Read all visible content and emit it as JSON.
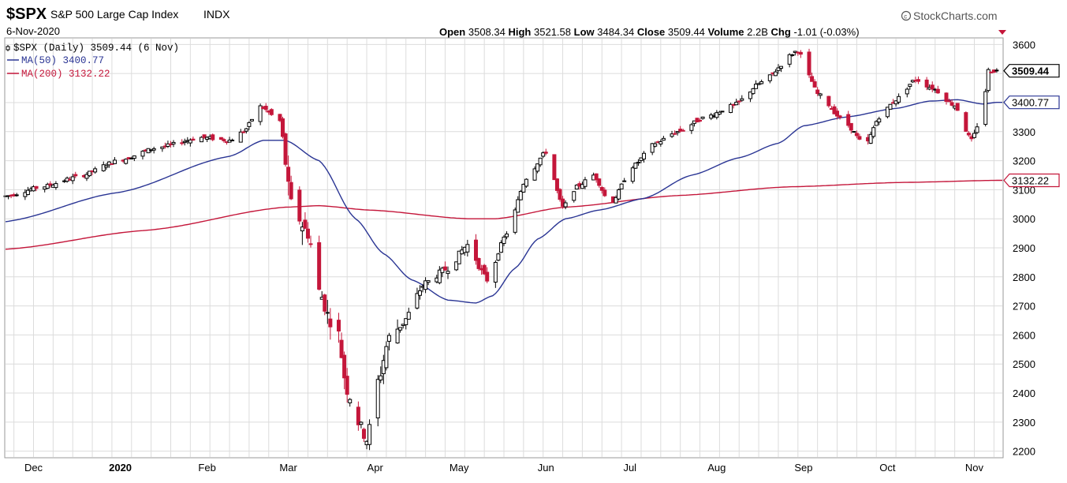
{
  "header": {
    "symbol": "$SPX",
    "name": "S&P 500 Large Cap Index",
    "exchange": "INDX",
    "date": "6-Nov-2020",
    "brand": "StockCharts.com",
    "brand_icon": "copyright-icon",
    "quote": {
      "open_label": "Open",
      "open": "3508.34",
      "high_label": "High",
      "high": "3521.58",
      "low_label": "Low",
      "low": "3484.34",
      "close_label": "Close",
      "close": "3509.44",
      "volume_label": "Volume",
      "volume": "2.2B",
      "chg_label": "Chg",
      "chg": "-1.01 (-0.03%)",
      "chg_icon": "triangle-down-icon"
    }
  },
  "legend": {
    "price": "$SPX (Daily) 3509.44 (6 Nov)",
    "ma50": "MA(50) 3400.77",
    "ma200": "MA(200) 3132.22"
  },
  "tags": {
    "price": "3509.44",
    "ma50": "3400.77",
    "ma200": "3132.22"
  },
  "colors": {
    "up": "#000000",
    "down": "#c4163a",
    "ma50": "#2a3594",
    "ma200": "#c4163a",
    "grid": "#dcdcdc",
    "frame": "#9a9a9a"
  },
  "chart_data": {
    "type": "candlestick",
    "y_axis": {
      "position": "right",
      "ylim": [
        2180,
        3620
      ],
      "ticks": [
        2200,
        2300,
        2400,
        2500,
        2600,
        2700,
        2800,
        2900,
        3000,
        3100,
        3200,
        3300,
        3400,
        3500,
        3600
      ]
    },
    "x_axis": {
      "labels": [
        {
          "label": "Dec",
          "bold": false,
          "day": 10
        },
        {
          "label": "2020",
          "bold": true,
          "day": 41
        },
        {
          "label": "Feb",
          "bold": false,
          "day": 72
        },
        {
          "label": "Mar",
          "bold": false,
          "day": 101
        },
        {
          "label": "Apr",
          "bold": false,
          "day": 132
        },
        {
          "label": "May",
          "bold": false,
          "day": 162
        },
        {
          "label": "Jun",
          "bold": false,
          "day": 193
        },
        {
          "label": "Jul",
          "bold": false,
          "day": 223
        },
        {
          "label": "Aug",
          "bold": false,
          "day": 254
        },
        {
          "label": "Sep",
          "bold": false,
          "day": 285
        },
        {
          "label": "Oct",
          "bold": false,
          "day": 315
        },
        {
          "label": "Nov",
          "bold": false,
          "day": 346
        }
      ],
      "day_range": [
        0,
        356
      ]
    },
    "grid": true,
    "legend_position": "top-left",
    "series": [
      {
        "name": "$SPX (Daily)",
        "kind": "price",
        "x_days": [
          0,
          13,
          26,
          40,
          55,
          70,
          80,
          85,
          91,
          98,
          102,
          108,
          112,
          116,
          118,
          122,
          126,
          129,
          133,
          137,
          141,
          150,
          158,
          165,
          172,
          179,
          186,
          193,
          199,
          204,
          210,
          216,
          224,
          232,
          240,
          250,
          260,
          270,
          283,
          287,
          290,
          300,
          307,
          312,
          318,
          325,
          331,
          339,
          345,
          349,
          351,
          354
        ],
        "close": [
          3078,
          3110,
          3145,
          3200,
          3247,
          3280,
          3270,
          3300,
          3386,
          3337,
          3050,
          2950,
          2750,
          2650,
          2650,
          2410,
          2300,
          2240,
          2440,
          2590,
          2630,
          2780,
          2830,
          2910,
          2790,
          2950,
          3140,
          3230,
          3040,
          3110,
          3150,
          3050,
          3180,
          3260,
          3300,
          3350,
          3390,
          3470,
          3580,
          3490,
          3430,
          3330,
          3250,
          3350,
          3410,
          3480,
          3450,
          3390,
          3270,
          3370,
          3510,
          3509.44
        ]
      },
      {
        "name": "MA(50)",
        "kind": "ma50",
        "x_days": [
          0,
          40,
          80,
          92,
          100,
          112,
          125,
          135,
          145,
          158,
          168,
          174,
          182,
          190,
          200,
          212,
          228,
          245,
          262,
          276,
          285,
          300,
          318,
          330,
          340,
          349,
          354
        ],
        "values": [
          2990,
          3090,
          3215,
          3270,
          3270,
          3200,
          3000,
          2880,
          2790,
          2720,
          2710,
          2735,
          2830,
          2930,
          3000,
          3030,
          3070,
          3150,
          3210,
          3260,
          3320,
          3350,
          3380,
          3405,
          3410,
          3395,
          3400.77
        ]
      },
      {
        "name": "MA(200)",
        "kind": "ma200",
        "x_days": [
          0,
          50,
          100,
          112,
          130,
          165,
          175,
          200,
          240,
          280,
          320,
          354
        ],
        "values": [
          2895,
          2960,
          3040,
          3045,
          3030,
          3000,
          3000,
          3040,
          3080,
          3110,
          3125,
          3132.22
        ]
      }
    ]
  }
}
